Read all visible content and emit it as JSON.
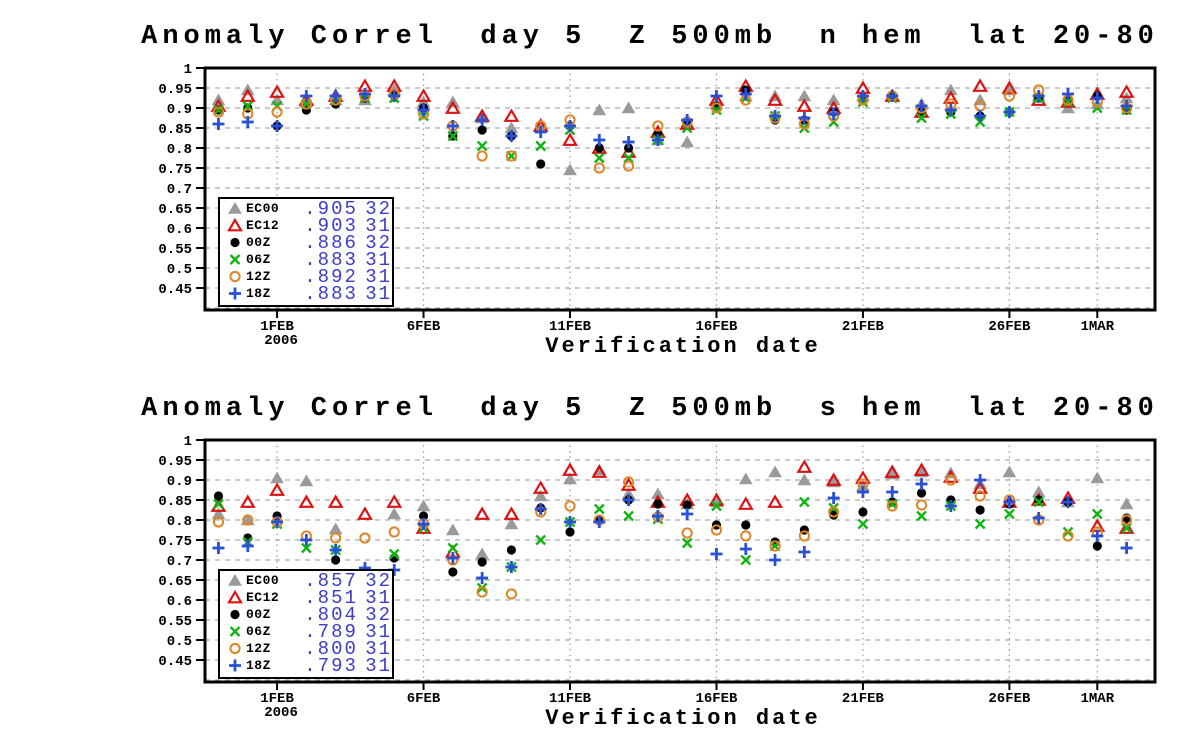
{
  "style": {
    "grid_color": "#aaaaaa",
    "vline_color": "#999999",
    "frame_color": "#000000",
    "legend_value_color": "#3c3ccc"
  },
  "chart_data": [
    {
      "type": "scatter",
      "title": "Anomaly Correl  day 5  Z 500mb  n hem  lat 20-80",
      "xlabel": "Verification date",
      "ylabel": "",
      "grid": true,
      "legend_position": "lower-left",
      "ylim_display": [
        0.395,
        1.0
      ],
      "xlim_dayindex": [
        -0.46,
        31.97
      ],
      "y_axis": {
        "ticks": [
          {
            "label": "1",
            "value": 1.0
          },
          {
            "label": "0.95",
            "value": 0.95
          },
          {
            "label": "0.9",
            "value": 0.9
          },
          {
            "label": "0.85",
            "value": 0.85
          },
          {
            "label": "0.8",
            "value": 0.8
          },
          {
            "label": "0.75",
            "value": 0.75
          },
          {
            "label": "0.7",
            "value": 0.7
          },
          {
            "label": "0.65",
            "value": 0.65
          },
          {
            "label": "0.6",
            "value": 0.6
          },
          {
            "label": "0.55",
            "value": 0.55
          },
          {
            "label": "0.5",
            "value": 0.5
          },
          {
            "label": "0.45",
            "value": 0.45
          }
        ],
        "grid_extra": [
          0.4
        ]
      },
      "x_axis": {
        "ticks": [
          {
            "label": "1FEB",
            "sublabel": "2006",
            "dayindex": 2
          },
          {
            "label": "6FEB",
            "sublabel": "",
            "dayindex": 7
          },
          {
            "label": "11FEB",
            "sublabel": "",
            "dayindex": 12
          },
          {
            "label": "16FEB",
            "sublabel": "",
            "dayindex": 17
          },
          {
            "label": "21FEB",
            "sublabel": "",
            "dayindex": 22
          },
          {
            "label": "26FEB",
            "sublabel": "",
            "dayindex": 27
          },
          {
            "label": "1MAR",
            "sublabel": "",
            "dayindex": 30
          }
        ]
      },
      "dates": [
        "30JAN",
        "31JAN",
        "1FEB",
        "2FEB",
        "3FEB",
        "4FEB",
        "5FEB",
        "6FEB",
        "7FEB",
        "8FEB",
        "9FEB",
        "10FEB",
        "11FEB",
        "12FEB",
        "13FEB",
        "14FEB",
        "15FEB",
        "16FEB",
        "17FEB",
        "18FEB",
        "19FEB",
        "20FEB",
        "21FEB",
        "22FEB",
        "23FEB",
        "24FEB",
        "25FEB",
        "26FEB",
        "27FEB",
        "28FEB",
        "1MAR",
        "2MAR"
      ],
      "series": [
        {
          "name": "EC00",
          "marker": "triangle-filled",
          "color": "#9a9a9a",
          "score": ".905",
          "count": "32",
          "values": [
            0.92,
            0.945,
            0.92,
            0.915,
            0.92,
            0.92,
            0.945,
            0.915,
            0.915,
            0.875,
            0.85,
            0.86,
            0.745,
            0.895,
            0.9,
            0.82,
            0.815,
            0.91,
            0.93,
            0.93,
            0.93,
            0.92,
            0.93,
            0.93,
            0.91,
            0.945,
            0.92,
            0.945,
            0.93,
            0.9,
            0.91,
            0.925
          ]
        },
        {
          "name": "EC12",
          "marker": "triangle-open",
          "color": "#dd1111",
          "score": ".903",
          "count": "31",
          "values": [
            0.905,
            0.93,
            0.94,
            0.92,
            0.93,
            0.955,
            0.955,
            0.93,
            0.9,
            0.88,
            0.88,
            0.855,
            0.82,
            0.8,
            0.79,
            0.84,
            0.86,
            0.92,
            0.955,
            0.92,
            0.905,
            0.9,
            0.95,
            0.93,
            0.89,
            0.925,
            0.955,
            0.95,
            0.92,
            0.915,
            0.935,
            0.94
          ]
        },
        {
          "name": "00Z",
          "marker": "circle-filled",
          "color": "#000000",
          "score": ".886",
          "count": "32",
          "values": [
            0.895,
            0.9,
            0.855,
            0.895,
            0.91,
            0.925,
            0.93,
            0.9,
            0.83,
            0.845,
            0.83,
            0.76,
            0.855,
            0.8,
            0.8,
            0.835,
            0.86,
            0.905,
            0.945,
            0.87,
            0.87,
            0.89,
            0.925,
            0.93,
            0.89,
            0.89,
            0.88,
            0.89,
            0.925,
            0.92,
            0.93,
            0.895
          ]
        },
        {
          "name": "06Z",
          "marker": "cross",
          "color": "#11b411",
          "score": ".883",
          "count": "31",
          "values": [
            0.895,
            0.905,
            0.905,
            0.91,
            0.92,
            0.925,
            0.925,
            0.88,
            0.83,
            0.805,
            0.78,
            0.805,
            0.845,
            0.775,
            0.775,
            0.82,
            0.85,
            0.895,
            0.925,
            0.88,
            0.85,
            0.865,
            0.915,
            0.925,
            0.875,
            0.885,
            0.865,
            0.89,
            0.925,
            0.915,
            0.9,
            0.895
          ]
        },
        {
          "name": "12Z",
          "marker": "circle-open",
          "color": "#e08428",
          "score": ".892",
          "count": "31",
          "values": [
            0.89,
            0.885,
            0.89,
            0.91,
            0.92,
            0.93,
            0.935,
            0.885,
            0.855,
            0.78,
            0.78,
            0.855,
            0.87,
            0.75,
            0.755,
            0.855,
            0.865,
            0.9,
            0.92,
            0.875,
            0.86,
            0.88,
            0.92,
            0.93,
            0.9,
            0.91,
            0.905,
            0.93,
            0.945,
            0.92,
            0.915,
            0.9
          ]
        },
        {
          "name": "18Z",
          "marker": "plus",
          "color": "#2850d8",
          "score": ".883",
          "count": "31",
          "values": [
            0.86,
            0.865,
            0.855,
            0.93,
            0.93,
            0.935,
            0.93,
            0.895,
            0.855,
            0.87,
            0.83,
            0.84,
            0.855,
            0.82,
            0.815,
            0.82,
            0.87,
            0.93,
            0.935,
            0.88,
            0.875,
            0.885,
            0.93,
            0.93,
            0.905,
            0.895,
            0.88,
            0.89,
            0.93,
            0.935,
            0.925,
            0.905
          ]
        }
      ]
    },
    {
      "type": "scatter",
      "title": "Anomaly Correl  day 5  Z 500mb  s hem  lat 20-80",
      "xlabel": "Verification date",
      "ylabel": "",
      "grid": true,
      "legend_position": "lower-left",
      "ylim_display": [
        0.395,
        1.0
      ],
      "xlim_dayindex": [
        -0.46,
        31.97
      ],
      "y_axis": {
        "ticks": [
          {
            "label": "1",
            "value": 1.0
          },
          {
            "label": "0.95",
            "value": 0.95
          },
          {
            "label": "0.9",
            "value": 0.9
          },
          {
            "label": "0.85",
            "value": 0.85
          },
          {
            "label": "0.8",
            "value": 0.8
          },
          {
            "label": "0.75",
            "value": 0.75
          },
          {
            "label": "0.7",
            "value": 0.7
          },
          {
            "label": "0.65",
            "value": 0.65
          },
          {
            "label": "0.6",
            "value": 0.6
          },
          {
            "label": "0.55",
            "value": 0.55
          },
          {
            "label": "0.5",
            "value": 0.5
          },
          {
            "label": "0.45",
            "value": 0.45
          }
        ],
        "grid_extra": [
          0.4
        ]
      },
      "x_axis": {
        "ticks": [
          {
            "label": "1FEB",
            "sublabel": "2006",
            "dayindex": 2
          },
          {
            "label": "6FEB",
            "sublabel": "",
            "dayindex": 7
          },
          {
            "label": "11FEB",
            "sublabel": "",
            "dayindex": 12
          },
          {
            "label": "16FEB",
            "sublabel": "",
            "dayindex": 17
          },
          {
            "label": "21FEB",
            "sublabel": "",
            "dayindex": 22
          },
          {
            "label": "26FEB",
            "sublabel": "",
            "dayindex": 27
          },
          {
            "label": "1MAR",
            "sublabel": "",
            "dayindex": 30
          }
        ]
      },
      "dates": [
        "30JAN",
        "31JAN",
        "1FEB",
        "2FEB",
        "3FEB",
        "4FEB",
        "5FEB",
        "6FEB",
        "7FEB",
        "8FEB",
        "9FEB",
        "10FEB",
        "11FEB",
        "12FEB",
        "13FEB",
        "14FEB",
        "15FEB",
        "16FEB",
        "17FEB",
        "18FEB",
        "19FEB",
        "20FEB",
        "21FEB",
        "22FEB",
        "23FEB",
        "24FEB",
        "25FEB",
        "26FEB",
        "27FEB",
        "28FEB",
        "1MAR",
        "2MAR"
      ],
      "series": [
        {
          "name": "EC00",
          "marker": "triangle-filled",
          "color": "#9a9a9a",
          "score": ".857",
          "count": "32",
          "values": [
            0.815,
            0.8,
            0.905,
            0.8975,
            0.7775,
            0.6625,
            0.815,
            0.835,
            0.775,
            0.715,
            0.79,
            0.86,
            0.9025,
            0.925,
            0.865,
            0.865,
            0.84,
            0.845,
            0.9025,
            0.92,
            0.9,
            0.895,
            0.885,
            0.915,
            0.92,
            0.9175,
            0.89,
            0.92,
            0.87,
            0.845,
            0.905,
            0.84
          ]
        },
        {
          "name": "EC12",
          "marker": "triangle-open",
          "color": "#dd1111",
          "score": ".851",
          "count": "31",
          "values": [
            0.835,
            0.845,
            0.875,
            0.845,
            0.845,
            0.815,
            0.845,
            0.78,
            0.72,
            0.815,
            0.815,
            0.88,
            0.925,
            0.92,
            0.8875,
            0.845,
            0.85,
            0.85,
            0.84,
            0.845,
            0.9325,
            0.9,
            0.905,
            0.92,
            0.925,
            0.9075,
            0.88,
            0.845,
            0.85,
            0.855,
            0.785,
            0.78
          ]
        },
        {
          "name": "00Z",
          "marker": "circle-filled",
          "color": "#000000",
          "score": ".804",
          "count": "32",
          "values": [
            0.86,
            0.755,
            0.81,
            0.655,
            0.7,
            0.665,
            0.705,
            0.81,
            0.67,
            0.695,
            0.725,
            0.83,
            0.77,
            0.8,
            0.85,
            0.84,
            0.8375,
            0.7875,
            0.7875,
            0.745,
            0.775,
            0.8125,
            0.82,
            0.845,
            0.8675,
            0.85,
            0.825,
            0.84,
            0.85,
            0.845,
            0.735,
            0.805
          ]
        },
        {
          "name": "06Z",
          "marker": "cross",
          "color": "#11b411",
          "score": ".789",
          "count": "31",
          "values": [
            0.84,
            0.745,
            0.79,
            0.73,
            0.725,
            0.65,
            0.715,
            0.78,
            0.73,
            0.63,
            0.6825,
            0.75,
            0.795,
            0.8275,
            0.81,
            0.8025,
            0.7425,
            0.835,
            0.7,
            0.735,
            0.845,
            0.83,
            0.79,
            0.84,
            0.81,
            0.835,
            0.79,
            0.815,
            0.845,
            0.77,
            0.815,
            0.78
          ]
        },
        {
          "name": "12Z",
          "marker": "circle-open",
          "color": "#e08428",
          "score": ".800",
          "count": "31",
          "values": [
            0.795,
            0.8,
            0.795,
            0.76,
            0.755,
            0.755,
            0.77,
            0.79,
            0.7,
            0.62,
            0.615,
            0.82,
            0.835,
            0.8,
            0.895,
            0.8075,
            0.7675,
            0.775,
            0.76,
            0.735,
            0.76,
            0.82,
            0.89,
            0.835,
            0.8375,
            0.9,
            0.86,
            0.85,
            0.8,
            0.76,
            0.77,
            0.8
          ]
        },
        {
          "name": "18Z",
          "marker": "plus",
          "color": "#2850d8",
          "score": ".793",
          "count": "31",
          "values": [
            0.73,
            0.735,
            0.795,
            0.75,
            0.725,
            0.68,
            0.675,
            0.79,
            0.705,
            0.655,
            0.6825,
            0.8275,
            0.795,
            0.795,
            0.85,
            0.81,
            0.815,
            0.715,
            0.7275,
            0.7,
            0.72,
            0.855,
            0.87,
            0.87,
            0.89,
            0.835,
            0.9,
            0.845,
            0.805,
            0.845,
            0.76,
            0.73
          ]
        }
      ]
    }
  ]
}
